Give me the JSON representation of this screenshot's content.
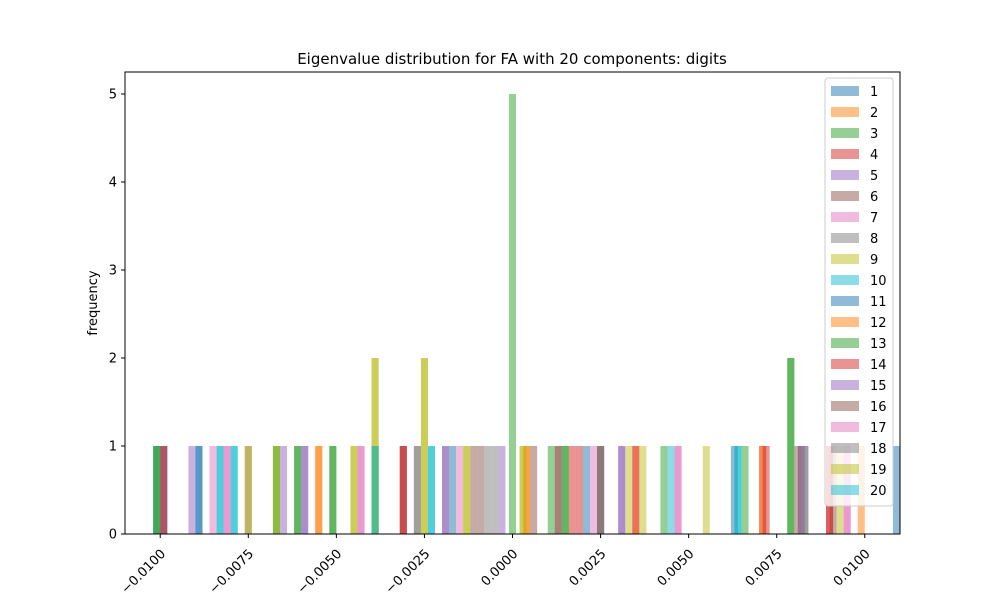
{
  "chart_data": {
    "type": "bar",
    "title": "Eigenvalue distribution for FA with 20 components: digits",
    "xlabel": "",
    "ylabel": "frequency",
    "xlim": [
      -0.011,
      0.011
    ],
    "ylim": [
      0,
      5.25
    ],
    "xticks": [
      -0.01,
      -0.0075,
      -0.005,
      -0.0025,
      0.0,
      0.0025,
      0.005,
      0.0075,
      0.01
    ],
    "xtick_labels": [
      "−0.0100",
      "−0.0075",
      "−0.0050",
      "−0.0025",
      "0.0000",
      "0.0025",
      "0.0050",
      "0.0075",
      "0.0100"
    ],
    "yticks": [
      0,
      1,
      2,
      3,
      4,
      5
    ],
    "ytick_labels": [
      "0",
      "1",
      "2",
      "3",
      "4",
      "5"
    ],
    "grid": false,
    "legend_position": "top-right",
    "bar_alpha": 0.5,
    "bar_width": 0.0002,
    "series": [
      {
        "name": "1",
        "color": "#1f77b4",
        "x": [
          -0.0101,
          -0.0089,
          0.0109
        ],
        "values": [
          1,
          1,
          1
        ]
      },
      {
        "name": "2",
        "color": "#ff7f0e",
        "x": [
          -0.0055,
          0.0004,
          0.0099
        ],
        "values": [
          1,
          1,
          1
        ]
      },
      {
        "name": "3",
        "color": "#2ca02c",
        "x": [
          -0.0101,
          -0.0067,
          -0.0061,
          -0.0051,
          0.0015,
          0.0066,
          0.0079
        ],
        "values": [
          1,
          1,
          1,
          1,
          1,
          1,
          2
        ]
      },
      {
        "name": "4",
        "color": "#d62728",
        "x": [
          -0.0099,
          -0.0031,
          0.0019,
          0.0071,
          0.009
        ],
        "values": [
          1,
          1,
          1,
          1,
          1
        ]
      },
      {
        "name": "5",
        "color": "#9467bd",
        "x": [
          -0.0091,
          -0.0065,
          -0.0059,
          -0.0019,
          0.0031,
          0.0082
        ],
        "values": [
          1,
          1,
          1,
          1,
          1,
          1
        ]
      },
      {
        "name": "6",
        "color": "#8c564b",
        "x": [
          -0.0031,
          -0.0011,
          0.0006,
          0.0013,
          0.0025,
          0.0091
        ],
        "values": [
          1,
          1,
          1,
          1,
          1,
          1
        ]
      },
      {
        "name": "7",
        "color": "#e377c2",
        "x": [
          -0.0085,
          -0.0081,
          -0.0043,
          0.0023,
          0.0047,
          0.0095
        ],
        "values": [
          1,
          1,
          1,
          1,
          1,
          1
        ]
      },
      {
        "name": "8",
        "color": "#7f7f7f",
        "x": [
          -0.0027,
          -0.0007,
          0.0025,
          0.0083
        ],
        "values": [
          1,
          1,
          1,
          1
        ]
      },
      {
        "name": "9",
        "color": "#bcbd22",
        "x": [
          -0.0045,
          -0.0039,
          -0.0025,
          -0.0013,
          0.0003,
          0.0033
        ],
        "values": [
          1,
          2,
          2,
          1,
          1,
          1
        ]
      },
      {
        "name": "10",
        "color": "#17becf",
        "x": [
          -0.0083,
          -0.0079,
          -0.0039,
          -0.0023,
          0.0064
        ],
        "values": [
          1,
          1,
          1,
          1,
          1
        ]
      },
      {
        "name": "11",
        "color": "#1f77b4",
        "x": [
          -0.0099,
          -0.0089,
          -0.0017,
          0.0021,
          0.0063
        ],
        "values": [
          1,
          1,
          1,
          1,
          1
        ]
      },
      {
        "name": "12",
        "color": "#ff7f0e",
        "x": [
          -0.0055,
          0.0004,
          0.0035,
          0.0071
        ],
        "values": [
          1,
          1,
          1,
          1
        ]
      },
      {
        "name": "13",
        "color": "#2ca02c",
        "x": [
          -0.0101,
          -0.0067,
          -0.0061,
          -0.0051,
          -0.0039,
          0.0,
          0.0011,
          0.0015,
          0.0043,
          0.0079
        ],
        "values": [
          1,
          1,
          1,
          1,
          1,
          5,
          1,
          1,
          1,
          2
        ]
      },
      {
        "name": "14",
        "color": "#d62728",
        "x": [
          -0.0099,
          -0.0031,
          0.0017,
          0.0035,
          0.0072,
          0.009
        ],
        "values": [
          1,
          1,
          1,
          1,
          1,
          1
        ]
      },
      {
        "name": "15",
        "color": "#9467bd",
        "x": [
          -0.0059,
          -0.0019,
          -0.0003,
          0.0031,
          0.0082
        ],
        "values": [
          1,
          1,
          1,
          1,
          1
        ]
      },
      {
        "name": "16",
        "color": "#8c564b",
        "x": [
          -0.0075,
          -0.0009,
          0.0013,
          0.0025,
          0.0081
        ],
        "values": [
          1,
          1,
          1,
          1,
          1
        ]
      },
      {
        "name": "17",
        "color": "#e377c2",
        "x": [
          -0.0081,
          -0.0043,
          -0.0015,
          0.0047,
          0.0095
        ],
        "values": [
          1,
          1,
          1,
          1,
          1
        ]
      },
      {
        "name": "18",
        "color": "#7f7f7f",
        "x": [
          -0.0027,
          -0.0005,
          0.0025,
          0.0083
        ],
        "values": [
          1,
          1,
          1,
          1
        ]
      },
      {
        "name": "19",
        "color": "#bcbd22",
        "x": [
          -0.0075,
          -0.0067,
          -0.0045,
          -0.0039,
          -0.0025,
          -0.0013,
          0.0003,
          0.0037,
          0.0055,
          0.0093
        ],
        "values": [
          1,
          1,
          1,
          2,
          2,
          1,
          1,
          1,
          1,
          1
        ]
      },
      {
        "name": "20",
        "color": "#17becf",
        "x": [
          -0.0083,
          -0.0079,
          -0.0039,
          -0.0023,
          0.0045,
          0.0064
        ],
        "values": [
          1,
          1,
          1,
          1,
          1,
          1
        ]
      }
    ]
  }
}
